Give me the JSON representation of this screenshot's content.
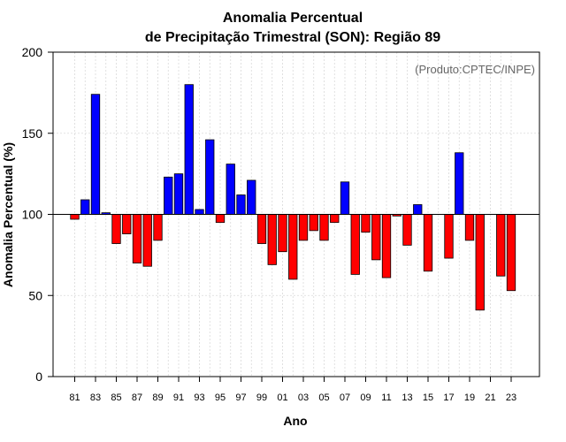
{
  "chart_data": {
    "type": "bar",
    "title": "Anomalia Percentual",
    "subtitle": "de Precipitação Trimestral (SON): Região 89",
    "xlabel": "Ano",
    "ylabel": "Anomalia Percentual (%)",
    "annotation": "(Produto:CPTEC/INPE)",
    "baseline": 100,
    "ylim": [
      0,
      200
    ],
    "yticks": [
      0,
      50,
      100,
      150,
      200
    ],
    "grid": true,
    "colors": {
      "above": "#0000ff",
      "below": "#ff0000",
      "edge": "#000000",
      "grid": "#d9d9d9"
    },
    "categories": [
      "81",
      "82",
      "83",
      "84",
      "85",
      "86",
      "87",
      "88",
      "89",
      "90",
      "91",
      "92",
      "93",
      "94",
      "95",
      "96",
      "97",
      "98",
      "99",
      "00",
      "01",
      "02",
      "03",
      "04",
      "05",
      "06",
      "07",
      "08",
      "09",
      "10",
      "11",
      "12",
      "13",
      "14",
      "15",
      "16",
      "17",
      "18",
      "19",
      "20",
      "21",
      "22",
      "23"
    ],
    "tick_labels": [
      "81",
      "83",
      "85",
      "87",
      "89",
      "91",
      "93",
      "95",
      "97",
      "99",
      "01",
      "03",
      "05",
      "07",
      "09",
      "11",
      "13",
      "15",
      "17",
      "19",
      "21",
      "23"
    ],
    "values": [
      97,
      109,
      174,
      101,
      82,
      88,
      70,
      68,
      84,
      123,
      125,
      180,
      103,
      146,
      95,
      131,
      112,
      121,
      82,
      69,
      77,
      60,
      84,
      90,
      84,
      95,
      120,
      63,
      89,
      72,
      61,
      99,
      81,
      106,
      65,
      null,
      73,
      138,
      84,
      41,
      null,
      62,
      53
    ]
  }
}
